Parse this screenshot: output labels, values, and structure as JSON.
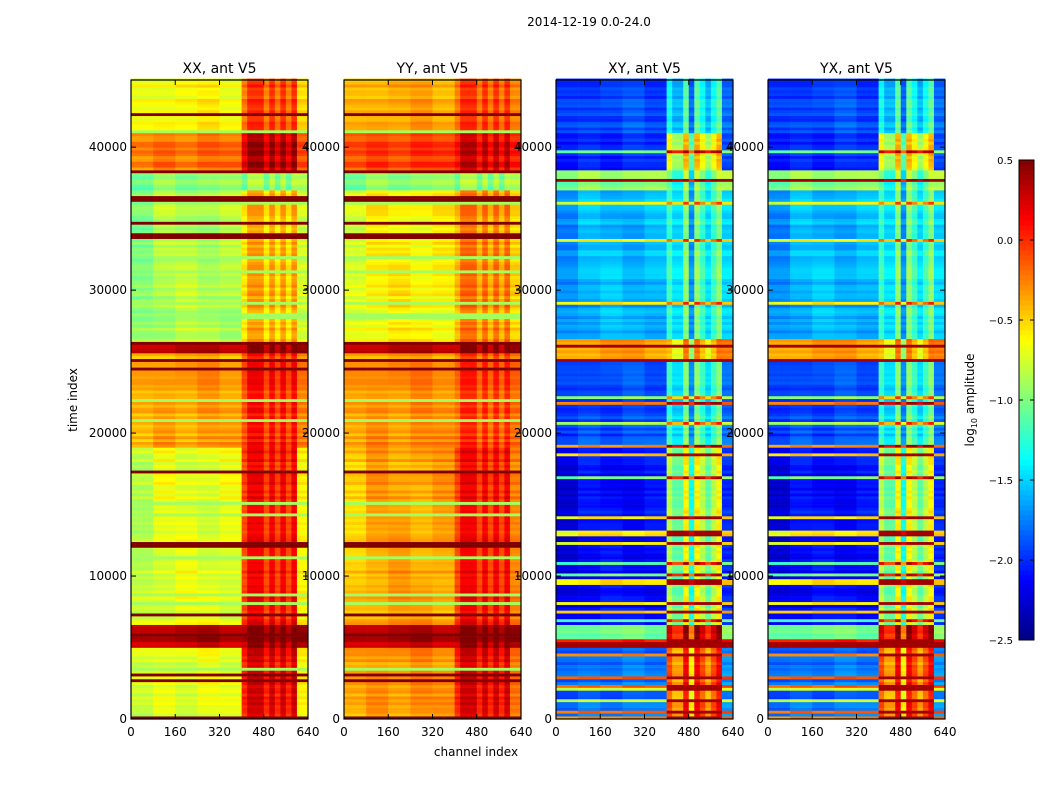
{
  "figure_title": "2014-12-19 0.0-24.0",
  "chart_data": [
    {
      "type": "heatmap",
      "title": "XX, ant V5",
      "xlabel": "",
      "ylabel": "time index",
      "xlim": [
        0,
        640
      ],
      "ylim": [
        0,
        44700
      ],
      "xticks": [
        "0",
        "160",
        "320",
        "480",
        "640"
      ],
      "yticks": [
        "0",
        "10000",
        "20000",
        "30000",
        "40000"
      ],
      "value_label": "log10 amplitude",
      "segments": [
        {
          "t": [
            0,
            5000
          ],
          "low_channels": -0.7,
          "high_channels": 0.15
        },
        {
          "t": [
            5000,
            6500
          ],
          "low_channels": 0.35,
          "high_channels": 0.45
        },
        {
          "t": [
            6500,
            19000
          ],
          "low_channels": -0.7,
          "high_channels": 0.05
        },
        {
          "t": [
            19000,
            25500
          ],
          "low_channels": -0.35,
          "high_channels": 0.0
        },
        {
          "t": [
            25500,
            26100
          ],
          "low_channels": 0.4,
          "high_channels": 0.45
        },
        {
          "t": [
            26100,
            37000
          ],
          "low_channels": -0.85,
          "high_channels": -0.45
        },
        {
          "t": [
            37000,
            38200
          ],
          "low_channels": -0.95,
          "high_channels": -0.95
        },
        {
          "t": [
            38200,
            41000
          ],
          "low_channels": -0.2,
          "high_channels": 0.3
        },
        {
          "t": [
            41000,
            44700
          ],
          "low_channels": -0.6,
          "high_channels": -0.1
        }
      ]
    },
    {
      "type": "heatmap",
      "title": "YY, ant V5",
      "xlabel": "channel index",
      "ylabel": "",
      "xlim": [
        0,
        640
      ],
      "ylim": [
        0,
        44700
      ],
      "xticks": [
        "0",
        "160",
        "320",
        "480",
        "640"
      ],
      "yticks": [
        "0",
        "10000",
        "20000",
        "30000",
        "40000"
      ],
      "value_label": "log10 amplitude",
      "segments": [
        {
          "t": [
            0,
            5000
          ],
          "low_channels": -0.3,
          "high_channels": 0.15
        },
        {
          "t": [
            5000,
            6500
          ],
          "low_channels": 0.35,
          "high_channels": 0.45
        },
        {
          "t": [
            6500,
            19000
          ],
          "low_channels": -0.35,
          "high_channels": 0.05
        },
        {
          "t": [
            19000,
            25500
          ],
          "low_channels": -0.3,
          "high_channels": -0.1
        },
        {
          "t": [
            25500,
            26100
          ],
          "low_channels": 0.4,
          "high_channels": 0.45
        },
        {
          "t": [
            26100,
            37000
          ],
          "low_channels": -0.6,
          "high_channels": -0.3
        },
        {
          "t": [
            37000,
            38200
          ],
          "low_channels": -0.95,
          "high_channels": -0.95
        },
        {
          "t": [
            38200,
            41000
          ],
          "low_channels": -0.05,
          "high_channels": 0.2
        },
        {
          "t": [
            41000,
            44700
          ],
          "low_channels": -0.35,
          "high_channels": -0.1
        }
      ]
    },
    {
      "type": "heatmap",
      "title": "XY, ant V5",
      "xlabel": "",
      "ylabel": "",
      "xlim": [
        0,
        640
      ],
      "ylim": [
        0,
        44700
      ],
      "xticks": [
        "0",
        "160",
        "320",
        "480",
        "640"
      ],
      "yticks": [
        "0",
        "10000",
        "20000",
        "30000",
        "40000"
      ],
      "value_label": "log10 amplitude",
      "segments": [
        {
          "t": [
            0,
            5000
          ],
          "low_channels": -1.8,
          "high_channels": 0.0
        },
        {
          "t": [
            5000,
            6500
          ],
          "low_channels": -1.0,
          "high_channels": 0.4
        },
        {
          "t": [
            6500,
            19000
          ],
          "low_channels": -2.1,
          "high_channels": -0.7
        },
        {
          "t": [
            19000,
            25000
          ],
          "low_channels": -1.9,
          "high_channels": -1.1
        },
        {
          "t": [
            25000,
            26500
          ],
          "low_channels": -0.3,
          "high_channels": -0.3
        },
        {
          "t": [
            26500,
            37000
          ],
          "low_channels": -1.6,
          "high_channels": -1.1
        },
        {
          "t": [
            37000,
            38400
          ],
          "low_channels": -0.95,
          "high_channels": -0.95
        },
        {
          "t": [
            38400,
            41000
          ],
          "low_channels": -2.0,
          "high_channels": -0.5
        },
        {
          "t": [
            41000,
            44700
          ],
          "low_channels": -1.9,
          "high_channels": -1.2
        }
      ]
    },
    {
      "type": "heatmap",
      "title": "YX, ant V5",
      "xlabel": "",
      "ylabel": "",
      "xlim": [
        0,
        640
      ],
      "ylim": [
        0,
        44700
      ],
      "xticks": [
        "0",
        "160",
        "320",
        "480",
        "640"
      ],
      "yticks": [
        "0",
        "10000",
        "20000",
        "30000",
        "40000"
      ],
      "value_label": "log10 amplitude",
      "segments": [
        {
          "t": [
            0,
            5000
          ],
          "low_channels": -1.8,
          "high_channels": 0.0
        },
        {
          "t": [
            5000,
            6500
          ],
          "low_channels": -1.0,
          "high_channels": 0.4
        },
        {
          "t": [
            6500,
            19000
          ],
          "low_channels": -2.1,
          "high_channels": -0.7
        },
        {
          "t": [
            19000,
            25000
          ],
          "low_channels": -1.9,
          "high_channels": -1.1
        },
        {
          "t": [
            25000,
            26500
          ],
          "low_channels": -0.3,
          "high_channels": -0.3
        },
        {
          "t": [
            26500,
            37000
          ],
          "low_channels": -1.6,
          "high_channels": -1.1
        },
        {
          "t": [
            37000,
            38400
          ],
          "low_channels": -0.95,
          "high_channels": -0.95
        },
        {
          "t": [
            38400,
            41000
          ],
          "low_channels": -2.0,
          "high_channels": -0.5
        },
        {
          "t": [
            41000,
            44700
          ],
          "low_channels": -1.9,
          "high_channels": -1.2
        }
      ]
    }
  ],
  "colorbar": {
    "label_prefix": "log",
    "label_sub": "10",
    "label_suffix": " amplitude",
    "range": [
      -2.5,
      0.5
    ],
    "ticks": [
      "0.5",
      "0.0",
      "−0.5",
      "−1.0",
      "−1.5",
      "−2.0",
      "−2.5"
    ],
    "colormap": "jet"
  }
}
